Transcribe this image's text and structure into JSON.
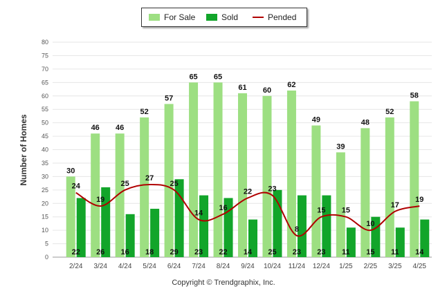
{
  "chart_data": {
    "type": "bar",
    "categories": [
      "2/24",
      "3/24",
      "4/24",
      "5/24",
      "6/24",
      "7/24",
      "8/24",
      "9/24",
      "10/24",
      "11/24",
      "12/24",
      "1/25",
      "2/25",
      "3/25",
      "4/25"
    ],
    "series": [
      {
        "name": "For Sale",
        "type": "bar",
        "color": "#9ddf82",
        "values": [
          30,
          46,
          46,
          52,
          57,
          65,
          65,
          61,
          60,
          62,
          49,
          39,
          48,
          52,
          58
        ]
      },
      {
        "name": "Sold",
        "type": "bar",
        "color": "#12a52a",
        "values": [
          22,
          26,
          16,
          18,
          29,
          23,
          22,
          14,
          25,
          23,
          23,
          11,
          15,
          11,
          14
        ]
      },
      {
        "name": "Pended",
        "type": "line",
        "color": "#b00000",
        "values": [
          24,
          19,
          25,
          27,
          25,
          14,
          16,
          22,
          23,
          8,
          15,
          15,
          10,
          17,
          19
        ]
      }
    ],
    "xlabel": "",
    "ylabel": "Number of Homes",
    "ylim": [
      0,
      80
    ],
    "yticks": [
      0,
      5,
      10,
      15,
      20,
      25,
      30,
      35,
      40,
      45,
      50,
      55,
      60,
      65,
      70,
      75,
      80
    ],
    "grid": true,
    "legend_position": "top-center"
  },
  "footer": "Copyright © Trendgraphix, Inc."
}
